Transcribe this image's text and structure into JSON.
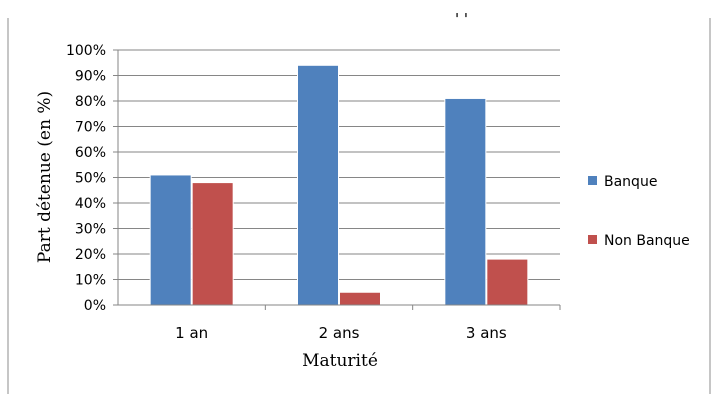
{
  "chart_data": {
    "type": "bar",
    "title": "",
    "title_fragment": "' '",
    "xlabel": "Maturité",
    "ylabel": "Part détenue (en %)",
    "categories": [
      "1 an",
      "2 ans",
      "3 ans"
    ],
    "series": [
      {
        "name": "Banque",
        "values": [
          51,
          94,
          81
        ],
        "color": "#4f81bd"
      },
      {
        "name": "Non Banque",
        "values": [
          48,
          5,
          18
        ],
        "color": "#c0504d"
      }
    ],
    "ylim": [
      0,
      100
    ],
    "yticks": [
      "0%",
      "10%",
      "20%",
      "30%",
      "40%",
      "50%",
      "60%",
      "70%",
      "80%",
      "90%",
      "100%"
    ],
    "grid": true,
    "legend_position": "right"
  }
}
